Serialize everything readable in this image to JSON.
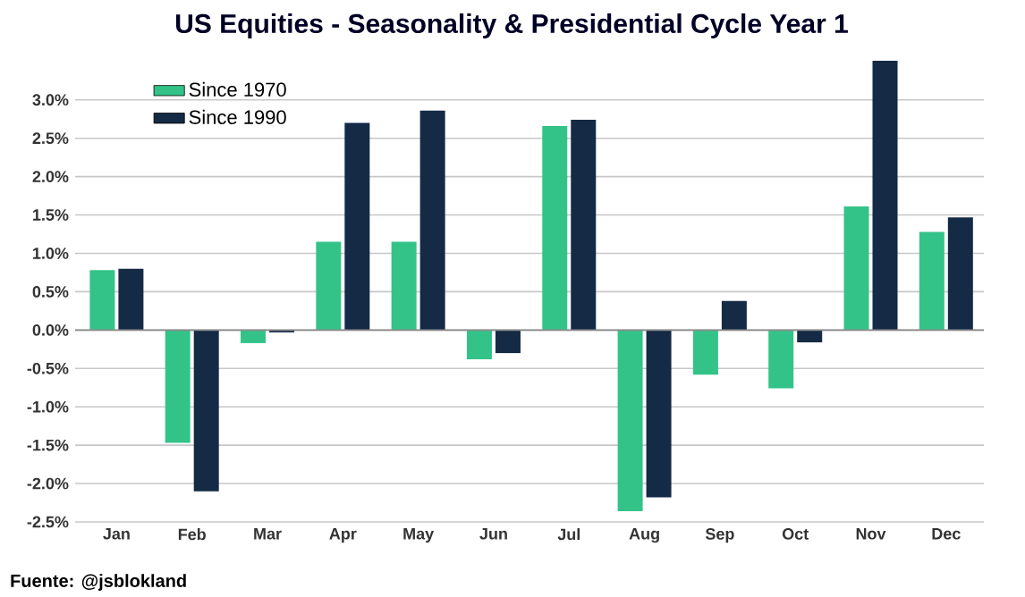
{
  "chart_data": {
    "type": "bar",
    "title": "US Equities - Seasonality & Presidential Cycle Year 1",
    "categories": [
      "Jan",
      "Feb",
      "Mar",
      "Apr",
      "May",
      "Jun",
      "Jul",
      "Aug",
      "Sep",
      "Oct",
      "Nov",
      "Dec"
    ],
    "series": [
      {
        "name": "Since 1970",
        "color": "#33c389",
        "values": [
          0.78,
          -1.47,
          -0.17,
          1.15,
          1.15,
          -0.38,
          2.66,
          -2.36,
          -0.58,
          -0.76,
          1.61,
          1.28
        ]
      },
      {
        "name": "Since 1990",
        "color": "#142a45",
        "values": [
          0.8,
          -2.1,
          -0.03,
          2.7,
          2.86,
          -0.3,
          2.74,
          -2.18,
          0.38,
          -0.16,
          3.51,
          1.47
        ]
      }
    ],
    "ylim": [
      -2.5,
      3.51
    ],
    "yticks": [
      {
        "value": -2.5,
        "label": "-2.5%"
      },
      {
        "value": -2.0,
        "label": "-2.0%"
      },
      {
        "value": -1.5,
        "label": "-1.5%"
      },
      {
        "value": -1.0,
        "label": "-1.0%"
      },
      {
        "value": -0.5,
        "label": "-0.5%"
      },
      {
        "value": 0.0,
        "label": "0.0%"
      },
      {
        "value": 0.5,
        "label": "0.5%"
      },
      {
        "value": 1.0,
        "label": "1.0%"
      },
      {
        "value": 1.5,
        "label": "1.5%"
      },
      {
        "value": 2.0,
        "label": "2.0%"
      },
      {
        "value": 2.5,
        "label": "2.5%"
      },
      {
        "value": 3.0,
        "label": "3.0%"
      }
    ],
    "grid": "y",
    "legend": "top left",
    "annotations": [
      "Fuente: @jsblokland"
    ]
  }
}
